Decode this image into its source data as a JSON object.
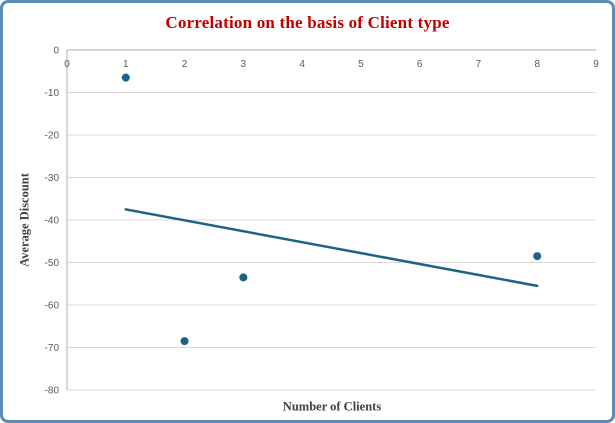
{
  "chart_data": {
    "type": "scatter",
    "title": "Correlation on the basis of Client type",
    "xlabel": "Number of Clients",
    "ylabel": "Average Discount",
    "x": [
      1,
      2,
      3,
      8
    ],
    "y": [
      -6.5,
      -68.5,
      -53.5,
      -48.5
    ],
    "xlim": [
      0,
      9
    ],
    "ylim": [
      -80,
      0
    ],
    "x_ticks": [
      0,
      1,
      2,
      3,
      4,
      5,
      6,
      7,
      8,
      9
    ],
    "y_ticks": [
      0,
      -10,
      -20,
      -30,
      -40,
      -50,
      -60,
      -70,
      -80
    ],
    "grid": "horizontal-only",
    "legend": "none",
    "trendline": {
      "x_start": 1,
      "y_start": -37.5,
      "x_end": 8,
      "y_end": -55.5
    }
  },
  "colors": {
    "card_border": "#5a8cb8",
    "title": "#c00000",
    "point": "#1f6287",
    "trendline": "#1f6287",
    "gridline": "#d9d9d9",
    "axis_line": "#bfbfbf",
    "tick_label": "#595959",
    "axis_title": "#3f3f3f"
  }
}
